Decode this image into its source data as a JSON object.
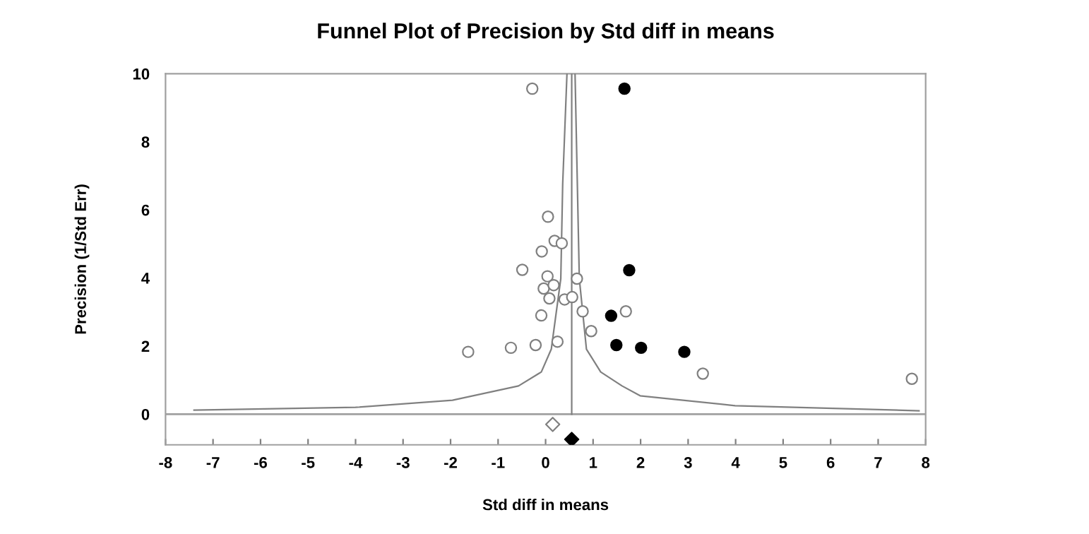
{
  "chart_data": {
    "type": "scatter",
    "title": "Funnel Plot of Precision by Std diff in means",
    "xlabel": "Std diff in means",
    "ylabel": "Precision (1/Std Err)",
    "xlim": [
      -8,
      8
    ],
    "xticks": [
      -8,
      -7,
      -6,
      -5,
      -4,
      -3,
      -2,
      -1,
      0,
      1,
      2,
      3,
      4,
      5,
      6,
      7,
      8
    ],
    "ylim": [
      -0.9,
      10
    ],
    "yticks": [
      0,
      2,
      4,
      6,
      8,
      10
    ],
    "grid": false,
    "legend": false,
    "ref_lines": [
      {
        "axis": "x",
        "value": 0.55,
        "color": "#808080"
      },
      {
        "axis": "y",
        "value": 0,
        "color": "#a0a0a0"
      }
    ],
    "series": [
      {
        "marker": "circle",
        "color": "#808080",
        "x": [
          0.05,
          0.19,
          0.34,
          -0.08,
          -0.49,
          0.04,
          0.66,
          -0.04,
          0.17,
          0.08,
          0.4,
          0.56,
          -0.09,
          0.78,
          1.69,
          0.96,
          0.25,
          -0.21,
          -0.73,
          -1.63,
          3.31,
          7.71,
          -0.28
        ],
        "values": [
          5.8,
          5.09,
          5.02,
          4.78,
          4.24,
          4.05,
          3.98,
          3.69,
          3.79,
          3.4,
          3.37,
          3.44,
          2.9,
          3.02,
          3.02,
          2.44,
          2.13,
          2.03,
          1.95,
          1.83,
          1.19,
          1.04,
          9.56
        ]
      },
      {
        "marker": "circle",
        "color": "#000000",
        "x": [
          1.66,
          1.76,
          1.38,
          1.49,
          2.01,
          2.92
        ],
        "values": [
          9.56,
          4.23,
          2.89,
          2.03,
          1.95,
          1.83
        ]
      },
      {
        "marker": "diamond",
        "color": "#808080",
        "x": [
          0.15
        ],
        "values": [
          -0.3
        ]
      },
      {
        "marker": "diamond",
        "color": "#000000",
        "x": [
          0.55
        ],
        "values": [
          -0.74
        ]
      },
      {
        "type": "line",
        "color": "#808080",
        "x": [
          -7.4,
          -4.0,
          -1.96,
          -0.57,
          -0.09,
          0.12,
          0.32,
          0.36,
          0.45
        ],
        "values": [
          0.12,
          0.2,
          0.41,
          0.83,
          1.24,
          1.91,
          3.98,
          6.76,
          10
        ]
      },
      {
        "type": "line",
        "color": "#808080",
        "x": [
          0.62,
          0.71,
          0.86,
          1.16,
          1.61,
          1.99,
          3.99,
          7.86
        ],
        "values": [
          10,
          3.98,
          1.91,
          1.24,
          0.83,
          0.54,
          0.25,
          0.1
        ]
      }
    ]
  }
}
